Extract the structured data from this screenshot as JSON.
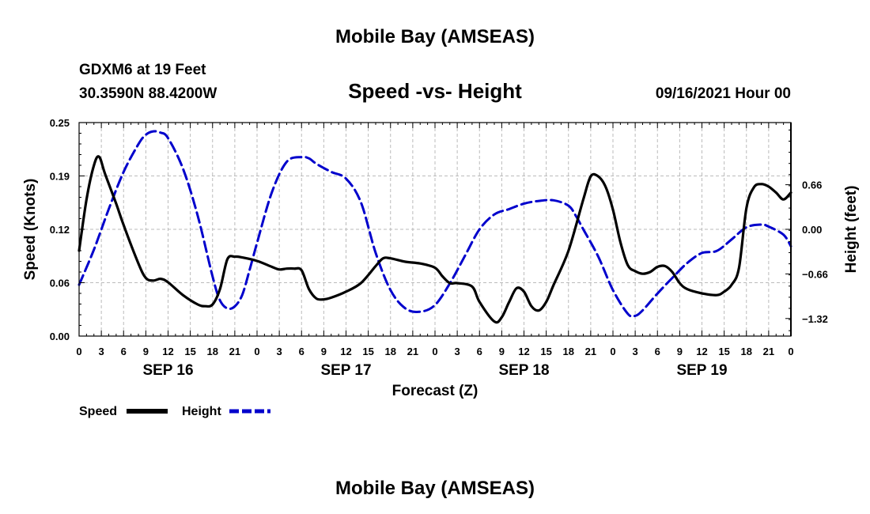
{
  "header": {
    "title_top": "Mobile Bay (AMSEAS)",
    "station": "GDXM6 at 19 Feet",
    "coords": "30.3590N  88.4200W",
    "subtitle": "Speed -vs- Height",
    "datetime": "09/16/2021 Hour 00",
    "title_bottom": "Mobile Bay (AMSEAS)"
  },
  "chart_data": {
    "type": "line",
    "title": "Speed -vs- Height",
    "xlabel": "Forecast (Z)",
    "ylabel_left": "Speed (Knots)",
    "ylabel_right": "Height (feet)",
    "x_range_hours": [
      0,
      96
    ],
    "ylim_left": [
      0,
      0.25
    ],
    "ylim_right": [
      -1.58,
      1.58
    ],
    "left_ticks": [
      "0.00",
      "0.06",
      "0.12",
      "0.19",
      "0.25"
    ],
    "right_ticks": [
      {
        "value": 0.66,
        "label": "0.66"
      },
      {
        "value": 0.0,
        "label": "0.00"
      },
      {
        "value": -0.66,
        "label": "−0.66"
      },
      {
        "value": -1.32,
        "label": "−1.32"
      }
    ],
    "x_tick_labels": [
      "0",
      "3",
      "6",
      "9",
      "12",
      "15",
      "18",
      "21",
      "0",
      "3",
      "6",
      "9",
      "12",
      "15",
      "18",
      "21",
      "0",
      "3",
      "6",
      "9",
      "12",
      "15",
      "18",
      "21",
      "0",
      "3",
      "6",
      "9",
      "12",
      "15",
      "18",
      "21",
      "0"
    ],
    "day_labels": [
      {
        "hour": 12,
        "label": "SEP 16"
      },
      {
        "hour": 36,
        "label": "SEP 17"
      },
      {
        "hour": 60,
        "label": "SEP 18"
      },
      {
        "hour": 84,
        "label": "SEP 19"
      }
    ],
    "grid": true,
    "legend_position": "bottom-left",
    "series": [
      {
        "name": "Speed",
        "axis": "left",
        "color": "#000000",
        "style": "solid",
        "points": [
          [
            0,
            0.1
          ],
          [
            1,
            0.16
          ],
          [
            2,
            0.2
          ],
          [
            2.7,
            0.21
          ],
          [
            3.5,
            0.19
          ],
          [
            5,
            0.155
          ],
          [
            6,
            0.13
          ],
          [
            8,
            0.085
          ],
          [
            9,
            0.068
          ],
          [
            10,
            0.065
          ],
          [
            11,
            0.067
          ],
          [
            12,
            0.063
          ],
          [
            14,
            0.048
          ],
          [
            16,
            0.037
          ],
          [
            17,
            0.035
          ],
          [
            18,
            0.037
          ],
          [
            19,
            0.055
          ],
          [
            20,
            0.09
          ],
          [
            21,
            0.093
          ],
          [
            22,
            0.092
          ],
          [
            24,
            0.088
          ],
          [
            26,
            0.081
          ],
          [
            27,
            0.078
          ],
          [
            28,
            0.079
          ],
          [
            29,
            0.079
          ],
          [
            30,
            0.077
          ],
          [
            31,
            0.055
          ],
          [
            32,
            0.044
          ],
          [
            33,
            0.043
          ],
          [
            34,
            0.045
          ],
          [
            36,
            0.052
          ],
          [
            38,
            0.062
          ],
          [
            40,
            0.082
          ],
          [
            41,
            0.091
          ],
          [
            42,
            0.091
          ],
          [
            44,
            0.087
          ],
          [
            46,
            0.085
          ],
          [
            48,
            0.08
          ],
          [
            49,
            0.07
          ],
          [
            50,
            0.062
          ],
          [
            51,
            0.062
          ],
          [
            53,
            0.058
          ],
          [
            54,
            0.04
          ],
          [
            56,
            0.017
          ],
          [
            57,
            0.022
          ],
          [
            58,
            0.04
          ],
          [
            59,
            0.056
          ],
          [
            60,
            0.052
          ],
          [
            61,
            0.035
          ],
          [
            62,
            0.03
          ],
          [
            63,
            0.04
          ],
          [
            64,
            0.06
          ],
          [
            66,
            0.1
          ],
          [
            68,
            0.16
          ],
          [
            69,
            0.187
          ],
          [
            70,
            0.187
          ],
          [
            71,
            0.175
          ],
          [
            72,
            0.148
          ],
          [
            73,
            0.11
          ],
          [
            74,
            0.083
          ],
          [
            75,
            0.076
          ],
          [
            76,
            0.073
          ],
          [
            77,
            0.075
          ],
          [
            78,
            0.081
          ],
          [
            79,
            0.082
          ],
          [
            80,
            0.075
          ],
          [
            81,
            0.062
          ],
          [
            82,
            0.055
          ],
          [
            84,
            0.05
          ],
          [
            86,
            0.048
          ],
          [
            87,
            0.052
          ],
          [
            88,
            0.06
          ],
          [
            89,
            0.08
          ],
          [
            90,
            0.15
          ],
          [
            91,
            0.174
          ],
          [
            92,
            0.178
          ],
          [
            93,
            0.175
          ],
          [
            94,
            0.168
          ],
          [
            95,
            0.16
          ],
          [
            96,
            0.168
          ]
        ]
      },
      {
        "name": "Height",
        "axis": "right",
        "color": "#0000cc",
        "style": "dashed",
        "points": [
          [
            0,
            -0.82
          ],
          [
            2,
            -0.3
          ],
          [
            4,
            0.3
          ],
          [
            6,
            0.85
          ],
          [
            8,
            1.26
          ],
          [
            9,
            1.4
          ],
          [
            10,
            1.45
          ],
          [
            11,
            1.43
          ],
          [
            12,
            1.35
          ],
          [
            14,
            0.9
          ],
          [
            16,
            0.2
          ],
          [
            18,
            -0.7
          ],
          [
            19,
            -1.05
          ],
          [
            20,
            -1.17
          ],
          [
            21,
            -1.14
          ],
          [
            22,
            -0.97
          ],
          [
            23,
            -0.6
          ],
          [
            24,
            -0.2
          ],
          [
            26,
            0.55
          ],
          [
            28,
            1.0
          ],
          [
            30,
            1.07
          ],
          [
            31,
            1.05
          ],
          [
            32,
            0.97
          ],
          [
            34,
            0.85
          ],
          [
            36,
            0.75
          ],
          [
            38,
            0.4
          ],
          [
            40,
            -0.35
          ],
          [
            42,
            -0.9
          ],
          [
            44,
            -1.17
          ],
          [
            46,
            -1.22
          ],
          [
            48,
            -1.12
          ],
          [
            50,
            -0.8
          ],
          [
            52,
            -0.4
          ],
          [
            54,
            0.0
          ],
          [
            56,
            0.22
          ],
          [
            58,
            0.3
          ],
          [
            60,
            0.38
          ],
          [
            62,
            0.42
          ],
          [
            64,
            0.43
          ],
          [
            66,
            0.35
          ],
          [
            67,
            0.2
          ],
          [
            68,
            0.0
          ],
          [
            70,
            -0.4
          ],
          [
            72,
            -0.9
          ],
          [
            74,
            -1.25
          ],
          [
            75,
            -1.28
          ],
          [
            76,
            -1.2
          ],
          [
            78,
            -0.95
          ],
          [
            80,
            -0.72
          ],
          [
            82,
            -0.5
          ],
          [
            84,
            -0.35
          ],
          [
            86,
            -0.32
          ],
          [
            88,
            -0.15
          ],
          [
            90,
            0.03
          ],
          [
            92,
            0.07
          ],
          [
            93,
            0.04
          ],
          [
            95,
            -0.08
          ],
          [
            96,
            -0.25
          ]
        ]
      }
    ]
  },
  "legend": {
    "speed_label": "Speed",
    "height_label": "Height"
  }
}
